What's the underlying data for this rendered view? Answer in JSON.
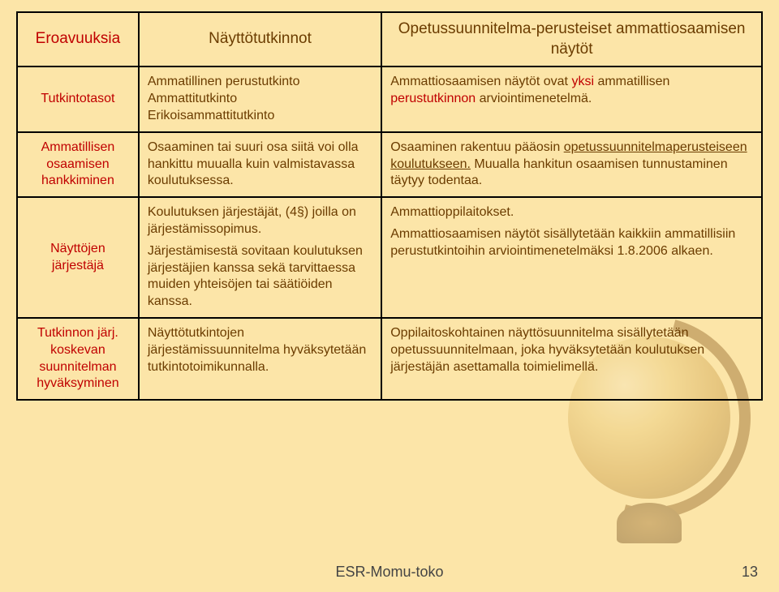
{
  "table": {
    "header": {
      "col1": "Eroavuuksia",
      "col2": "Näyttötutkinnot",
      "col3": "Opetussuunnitelma-perusteiset ammattiosaamisen näytöt"
    },
    "row1": {
      "label": "Tutkintotasot",
      "c2": "Ammatillinen perustutkinto\nAmmattitutkinto\nErikoisammattitutkinto",
      "c3a": "Ammattiosaamisen näytöt ovat ",
      "c3b": "yksi",
      "c3c": " ammatillisen ",
      "c3d": "perustutkinnon",
      "c3e": " arviointimenetelmä."
    },
    "row2": {
      "label": "Ammatillisen osaamisen hankkiminen",
      "c2": "Osaaminen tai suuri osa siitä voi olla hankittu muualla kuin valmistavassa koulutuksessa.",
      "c3a": "Osaaminen rakentuu pääosin ",
      "c3b": "opetussuunnitelmaperusteiseen koulutukseen.",
      "c3c": " Muualla hankitun osaamisen tunnustaminen täytyy todentaa."
    },
    "row3": {
      "label": "Näyttöjen järjestäjä",
      "c2p1": "Koulutuksen järjestäjät, (4§) joilla on järjestämissopimus.",
      "c2p2": "Järjestämisestä sovitaan koulutuksen järjestäjien kanssa sekä tarvittaessa muiden yhteisöjen tai säätiöiden kanssa.",
      "c3p1": "Ammattioppilaitokset.",
      "c3p2": "Ammattiosaamisen näytöt sisällytetään kaikkiin ammatillisiin perustutkintoihin arviointimenetelmäksi 1.8.2006 alkaen."
    },
    "row4": {
      "label": "Tutkinnon järj. koskevan suunnitelman hyväksyminen",
      "c2": "Näyttötutkintojen järjestämissuunnitelma hyväksytetään tutkintotoimikunnalla.",
      "c3": "Oppilaitoskohtainen näyttösuunnitelma sisällytetään opetussuunnitelmaan, joka hyväksytetään koulutuksen järjestäjän asettamalla toimielimellä."
    }
  },
  "footer": {
    "text": "ESR-Momu-toko",
    "page": "13"
  }
}
